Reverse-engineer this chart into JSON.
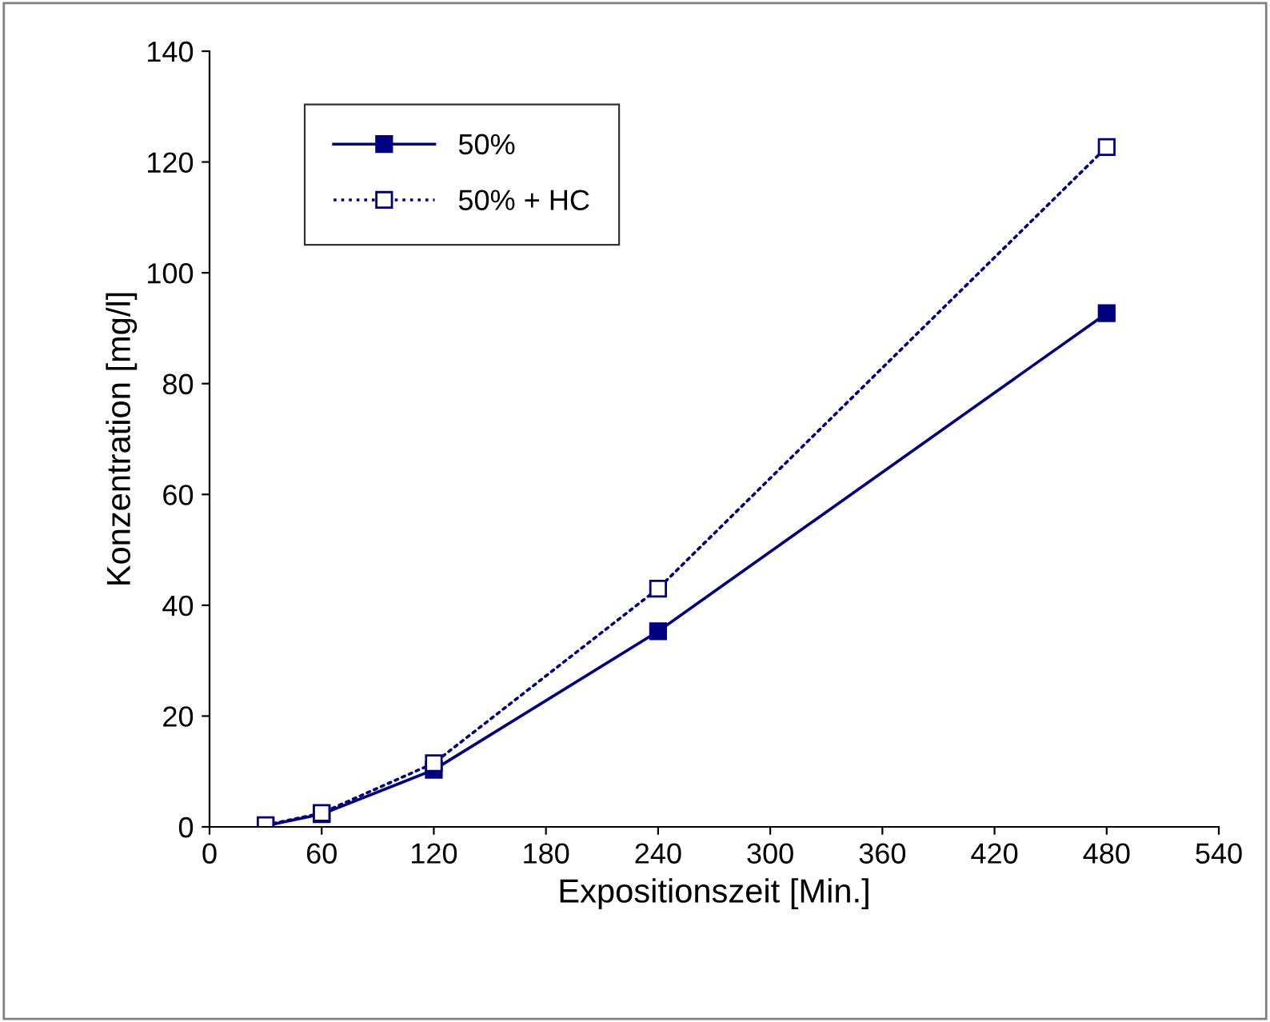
{
  "chart_data": {
    "type": "line",
    "xlabel": "Expositionszeit [Min.]",
    "ylabel": "Konzentration [mg/l]",
    "x": [
      30,
      60,
      120,
      240,
      480
    ],
    "series": [
      {
        "name": "50%",
        "color": "#000080",
        "values": [
          0.2,
          2.3,
          10.3,
          35.3,
          92.7
        ],
        "marker": "square",
        "line_style": "solid"
      },
      {
        "name": "50% + HC",
        "color": "#000080",
        "values": [
          0.3,
          2.5,
          11.5,
          43.0,
          122.7
        ],
        "marker": "square",
        "line_style": "dotted"
      }
    ],
    "xlim": [
      0,
      540
    ],
    "xticks": [
      0,
      60,
      120,
      180,
      240,
      300,
      360,
      420,
      480,
      540
    ],
    "ylim": [
      0,
      140
    ],
    "yticks": [
      0,
      20,
      40,
      60,
      80,
      100,
      120,
      140
    ],
    "grid": false,
    "legend": "top left"
  }
}
